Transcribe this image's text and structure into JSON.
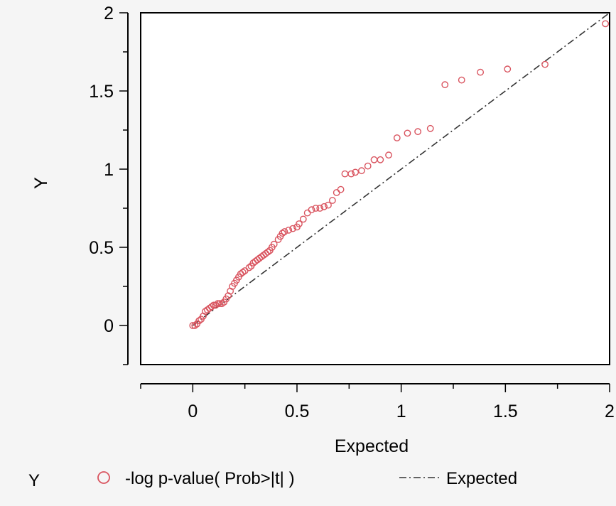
{
  "chart_data": {
    "type": "scatter",
    "title": "",
    "xlabel": "Expected",
    "ylabel": "Y",
    "xlim": [
      -0.25,
      2.0
    ],
    "ylim": [
      -0.25,
      2.0
    ],
    "x_ticks": [
      {
        "value": 0,
        "label": "0"
      },
      {
        "value": 0.5,
        "label": "0.5"
      },
      {
        "value": 1,
        "label": "1"
      },
      {
        "value": 1.5,
        "label": "1.5"
      },
      {
        "value": 2,
        "label": "2"
      }
    ],
    "y_ticks": [
      {
        "value": 0,
        "label": "0"
      },
      {
        "value": 0.5,
        "label": "0.5"
      },
      {
        "value": 1,
        "label": "1"
      },
      {
        "value": 1.5,
        "label": "1.5"
      },
      {
        "value": 2,
        "label": "2"
      }
    ],
    "grid": false,
    "legend_placement": "bottom",
    "legend_title": "Y",
    "series": [
      {
        "name": "-log p-value( Prob>|t| )",
        "type": "scatter",
        "marker": "open-circle",
        "color": "#d9545f",
        "points": [
          [
            0.0,
            0.0
          ],
          [
            0.01,
            0.0
          ],
          [
            0.02,
            0.01
          ],
          [
            0.03,
            0.03
          ],
          [
            0.04,
            0.04
          ],
          [
            0.05,
            0.06
          ],
          [
            0.06,
            0.09
          ],
          [
            0.07,
            0.1
          ],
          [
            0.08,
            0.11
          ],
          [
            0.09,
            0.12
          ],
          [
            0.1,
            0.13
          ],
          [
            0.11,
            0.13
          ],
          [
            0.12,
            0.14
          ],
          [
            0.13,
            0.14
          ],
          [
            0.14,
            0.14
          ],
          [
            0.15,
            0.15
          ],
          [
            0.16,
            0.17
          ],
          [
            0.17,
            0.19
          ],
          [
            0.18,
            0.22
          ],
          [
            0.19,
            0.25
          ],
          [
            0.2,
            0.27
          ],
          [
            0.21,
            0.29
          ],
          [
            0.22,
            0.31
          ],
          [
            0.23,
            0.33
          ],
          [
            0.24,
            0.34
          ],
          [
            0.25,
            0.35
          ],
          [
            0.27,
            0.37
          ],
          [
            0.28,
            0.38
          ],
          [
            0.29,
            0.4
          ],
          [
            0.3,
            0.41
          ],
          [
            0.31,
            0.42
          ],
          [
            0.32,
            0.43
          ],
          [
            0.33,
            0.44
          ],
          [
            0.34,
            0.45
          ],
          [
            0.35,
            0.46
          ],
          [
            0.36,
            0.47
          ],
          [
            0.37,
            0.48
          ],
          [
            0.38,
            0.5
          ],
          [
            0.39,
            0.52
          ],
          [
            0.41,
            0.55
          ],
          [
            0.42,
            0.57
          ],
          [
            0.43,
            0.59
          ],
          [
            0.44,
            0.6
          ],
          [
            0.46,
            0.61
          ],
          [
            0.48,
            0.62
          ],
          [
            0.5,
            0.63
          ],
          [
            0.51,
            0.65
          ],
          [
            0.53,
            0.68
          ],
          [
            0.55,
            0.72
          ],
          [
            0.57,
            0.74
          ],
          [
            0.59,
            0.75
          ],
          [
            0.61,
            0.75
          ],
          [
            0.63,
            0.76
          ],
          [
            0.65,
            0.77
          ],
          [
            0.67,
            0.8
          ],
          [
            0.69,
            0.85
          ],
          [
            0.71,
            0.87
          ],
          [
            0.73,
            0.97
          ],
          [
            0.76,
            0.97
          ],
          [
            0.78,
            0.98
          ],
          [
            0.81,
            0.99
          ],
          [
            0.84,
            1.02
          ],
          [
            0.87,
            1.06
          ],
          [
            0.9,
            1.06
          ],
          [
            0.94,
            1.09
          ],
          [
            0.98,
            1.2
          ],
          [
            1.03,
            1.23
          ],
          [
            1.08,
            1.24
          ],
          [
            1.14,
            1.26
          ],
          [
            1.21,
            1.54
          ],
          [
            1.29,
            1.57
          ],
          [
            1.38,
            1.62
          ],
          [
            1.51,
            1.64
          ],
          [
            1.69,
            1.67
          ],
          [
            1.98,
            1.93
          ]
        ]
      },
      {
        "name": "Expected",
        "type": "line",
        "style": "dash-dot",
        "color": "#333333",
        "points": [
          [
            0.0,
            0.0
          ],
          [
            2.0,
            2.0
          ]
        ]
      }
    ]
  }
}
